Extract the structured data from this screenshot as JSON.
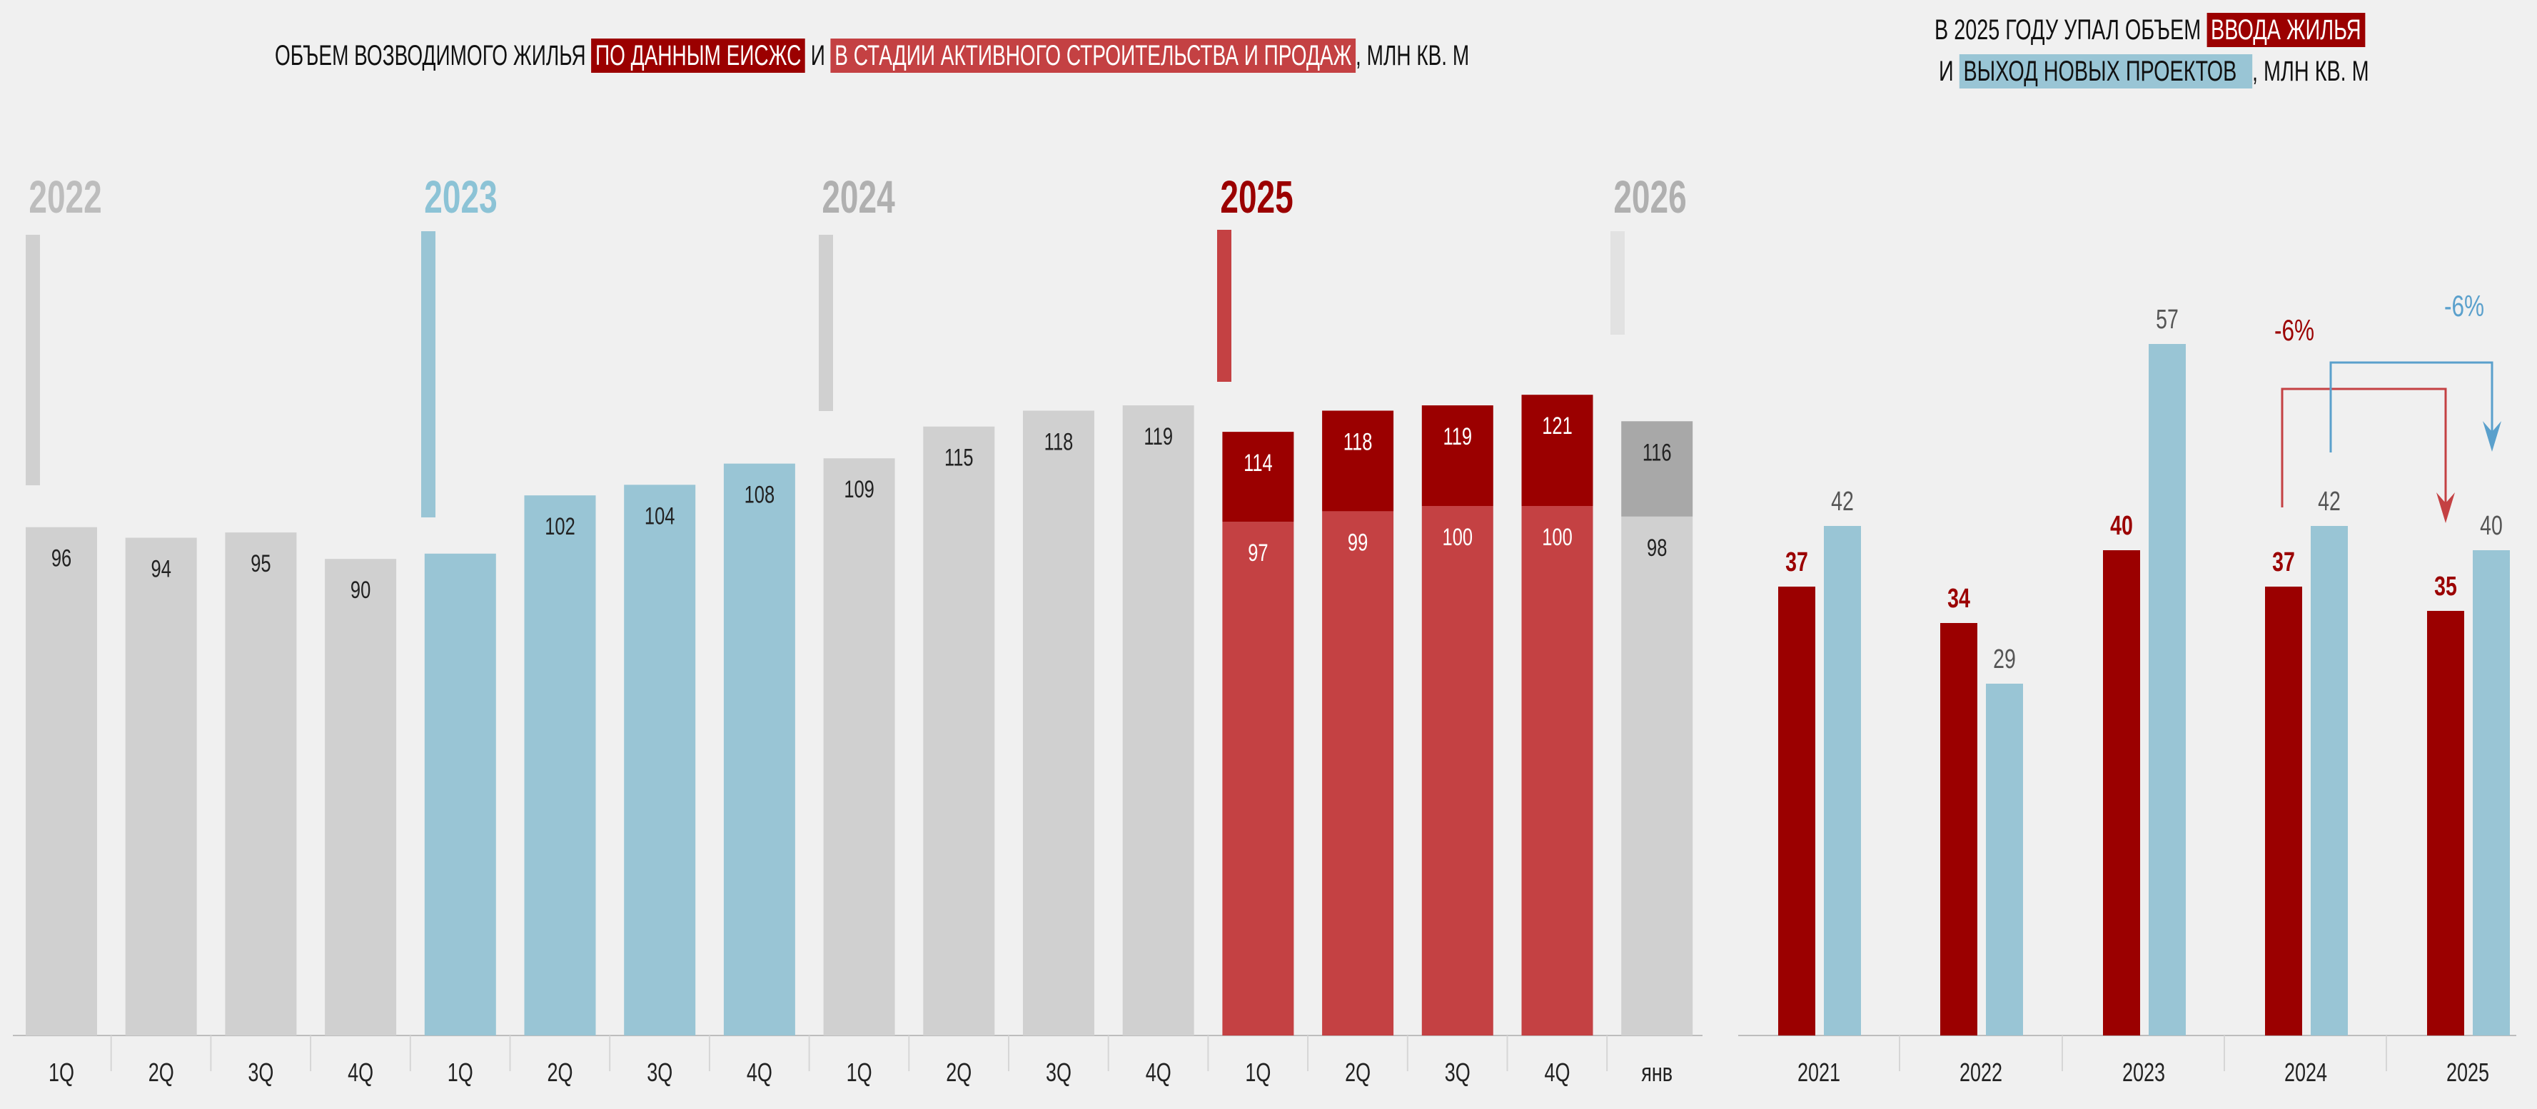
{
  "left_title": {
    "prefix": "ОБЪЕМ ВОЗВОДИМОГО ЖИЛЬЯ",
    "highlight1": "ПО ДАННЫМ ЕИСЖС",
    "middle": "И",
    "highlight2": "В СТАДИИ АКТИВНОГО СТРОИТЕЛЬСТВА И ПРОДАЖ",
    "suffix": ", МЛН КВ. М"
  },
  "right_title": {
    "line1_prefix": "В 2025 ГОДУ УПАЛ ОБЪЕМ",
    "line1_highlight": "ВВОДА ЖИЛЬЯ",
    "line2_prefix": "И",
    "line2_highlight": "ВЫХОД НОВЫХ ПРОЕКТОВ",
    "line2_suffix": ", МЛН КВ. М"
  },
  "colors": {
    "gray": "#d0d0d0",
    "blue": "#99c5d5",
    "red": "#c44143",
    "dark_red": "#9b0000",
    "dark_gray": "#a8a8a8",
    "arrow_blue": "#5aa0cc"
  },
  "chart_data": [
    {
      "type": "bar",
      "stacked": true,
      "title": "ОБЪЕМ ВОЗВОДИМОГО ЖИЛЬЯ ПО ДАННЫМ ЕИСЖС И В СТАДИИ АКТИВНОГО СТРОИТЕЛЬСТВА И ПРОДАЖ, МЛН КВ. М",
      "years": [
        {
          "label": "2022",
          "color": "#bdbdbd",
          "marker_color": "#d0d0d0"
        },
        {
          "label": "2023",
          "color": "#8cc3d6",
          "marker_color": "#99c5d5"
        },
        {
          "label": "2024",
          "color": "#b0b0b0",
          "marker_color": "#d0d0d0"
        },
        {
          "label": "2025",
          "color": "#9b0000",
          "marker_color": "#c44143"
        },
        {
          "label": "2026",
          "color": "#b0b0b0",
          "marker_color": "#e2e2e2"
        }
      ],
      "categories": [
        "1Q",
        "2Q",
        "3Q",
        "4Q",
        "1Q",
        "2Q",
        "3Q",
        "4Q",
        "1Q",
        "2Q",
        "3Q",
        "4Q",
        "1Q",
        "2Q",
        "3Q",
        "4Q",
        "янв"
      ],
      "base_values": [
        96,
        94,
        95,
        90,
        91,
        102,
        104,
        108,
        109,
        115,
        118,
        119,
        97,
        99,
        100,
        100,
        98
      ],
      "base_labels": [
        "96",
        "94",
        "95",
        "90",
        "",
        "102",
        "104",
        "108",
        "109",
        "115",
        "118",
        "119",
        "97",
        "99",
        "100",
        "100",
        "98"
      ],
      "total_values": [
        null,
        null,
        null,
        null,
        null,
        null,
        null,
        null,
        null,
        null,
        null,
        null,
        114,
        118,
        119,
        121,
        116
      ],
      "total_labels": [
        "",
        "",
        "",
        "",
        "",
        "",
        "",
        "",
        "",
        "",
        "",
        "",
        "114",
        "118",
        "119",
        "121",
        "116"
      ],
      "bar_colors": [
        "#d0d0d0",
        "#d0d0d0",
        "#d0d0d0",
        "#d0d0d0",
        "#99c5d5",
        "#99c5d5",
        "#99c5d5",
        "#99c5d5",
        "#d0d0d0",
        "#d0d0d0",
        "#d0d0d0",
        "#d0d0d0",
        "#c44143",
        "#c44143",
        "#c44143",
        "#c44143",
        "#d0d0d0"
      ],
      "top_colors": [
        null,
        null,
        null,
        null,
        null,
        null,
        null,
        null,
        null,
        null,
        null,
        null,
        "#9b0000",
        "#9b0000",
        "#9b0000",
        "#9b0000",
        "#a8a8a8"
      ],
      "ylim": [
        0,
        130
      ]
    },
    {
      "type": "bar",
      "title": "В 2025 ГОДУ УПАЛ ОБЪЕМ ВВОДА ЖИЛЬЯ И ВЫХОД НОВЫХ ПРОЕКТОВ, МЛН КВ. М",
      "categories": [
        "2021",
        "2022",
        "2023",
        "2024",
        "2025"
      ],
      "series": [
        {
          "name": "ВВОДА ЖИЛЬЯ",
          "color": "#9b0000",
          "values": [
            37,
            34,
            40,
            37,
            35
          ]
        },
        {
          "name": "ВЫХОД НОВЫХ ПРОЕКТОВ",
          "color": "#99c5d5",
          "values": [
            42,
            29,
            57,
            42,
            40
          ]
        }
      ],
      "annotations": [
        {
          "text": "-6%",
          "series": "ВВОДА ЖИЛЬЯ",
          "from": "2024",
          "to": "2025",
          "color": "#9b0000"
        },
        {
          "text": "-6%",
          "series": "ВЫХОД НОВЫХ ПРОЕКТОВ",
          "from": "2024",
          "to": "2025",
          "color": "#5aa0cc"
        }
      ],
      "ylim": [
        0,
        60
      ]
    }
  ]
}
